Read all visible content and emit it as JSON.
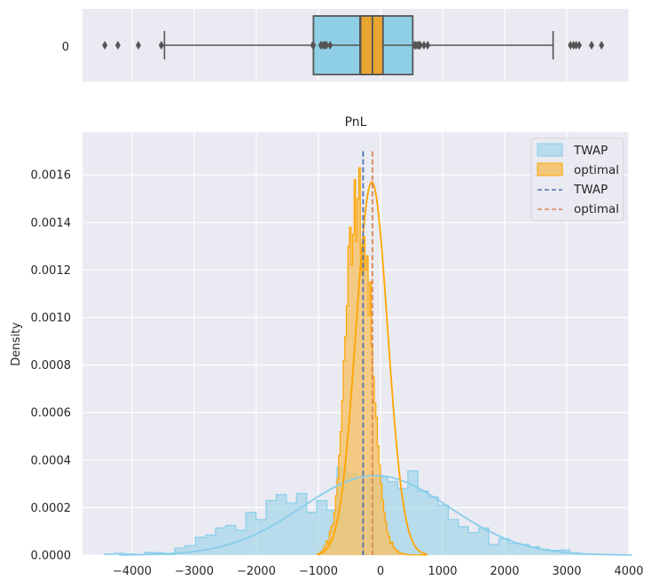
{
  "chart_data": [
    {
      "type": "boxplot",
      "orientation": "horizontal",
      "y_category": "0",
      "xlim": [
        -4800,
        4000
      ],
      "boxes": [
        {
          "name": "TWAP",
          "color": "#8ECFE6",
          "q1": -1080,
          "median": -330,
          "q3": 520,
          "whisker_low": -3480,
          "whisker_high": 2780,
          "outliers": [
            -4440,
            -4230,
            -3900,
            -3530,
            -1080,
            -960,
            -900,
            -870,
            -810,
            3060,
            3110,
            3150,
            3200,
            3400,
            3560
          ]
        },
        {
          "name": "optimal",
          "color": "#E8A530",
          "q1": -320,
          "median": -130,
          "q3": 40,
          "whisker_low": -810,
          "whisker_high": 530,
          "outliers": [
            -1090,
            -960,
            -920,
            550,
            570,
            600,
            620,
            640,
            700,
            760
          ]
        }
      ]
    },
    {
      "type": "histogram",
      "title": "PnL",
      "xlabel": "",
      "ylabel": "Density",
      "xlim": [
        -4800,
        4000
      ],
      "ylim": [
        0,
        0.00178
      ],
      "x_ticks": [
        "−4000",
        "−3000",
        "−2000",
        "−1000",
        "0",
        "1000",
        "2000",
        "3000",
        "4000"
      ],
      "x_tick_values": [
        -4000,
        -3000,
        -2000,
        -1000,
        0,
        1000,
        2000,
        3000,
        4000
      ],
      "y_ticks": [
        "0.0000",
        "0.0002",
        "0.0004",
        "0.0006",
        "0.0008",
        "0.0010",
        "0.0012",
        "0.0014",
        "0.0016"
      ],
      "y_tick_values": [
        0,
        0.0002,
        0.0004,
        0.0006,
        0.0008,
        0.001,
        0.0012,
        0.0014,
        0.0016
      ],
      "series": [
        {
          "name": "TWAP",
          "kind": "hist",
          "color": "#8ECFE6",
          "edge": "#87CEEB",
          "bin_start": -4450,
          "bin_width": 163,
          "values": [
            5e-06,
            8e-06,
            5e-06,
            3e-06,
            1.2e-05,
            1e-05,
            3e-06,
            3e-05,
            4e-05,
            7.5e-05,
            8.5e-05,
            0.000115,
            0.000125,
            0.000105,
            0.00018,
            0.00015,
            0.00023,
            0.000255,
            0.00022,
            0.00026,
            0.00018,
            0.00023,
            0.00019,
            0.00037,
            0.000345,
            0.000305,
            0.00032,
            0.00033,
            0.00031,
            0.00028,
            0.000355,
            0.00027,
            0.000245,
            0.00021,
            0.00015,
            0.00012,
            9.5e-05,
            0.000115,
            4.5e-05,
            7e-05,
            5e-05,
            4.5e-05,
            3.5e-05,
            2.5e-05,
            2e-05,
            2.2e-05,
            1e-05,
            5e-06,
            4e-06,
            3e-06
          ]
        },
        {
          "name": "optimal",
          "kind": "hist",
          "color": "#F6C064",
          "edge": "#FFA500",
          "bin_start": -1000,
          "bin_width": 25,
          "values": [
            5e-06,
            1.5e-05,
            1e-05,
            3e-05,
            4e-05,
            6e-05,
            5e-05,
            0.0001,
            0.00012,
            0.00013,
            0.00018,
            0.00025,
            0.00032,
            0.00042,
            0.00052,
            0.00065,
            0.00082,
            0.00092,
            0.00105,
            0.0013,
            0.00138,
            0.00122,
            0.00135,
            0.00158,
            0.00132,
            0.0015,
            0.00163,
            0.00127,
            0.00118,
            0.00134,
            0.0012,
            0.00126,
            0.00101,
            0.00115,
            0.00088,
            0.00075,
            0.00064,
            0.00058,
            0.00046,
            0.00038,
            0.0003,
            0.00023,
            0.00018,
            0.00014,
            0.0001,
            8e-05,
            5e-05,
            5.5e-05,
            3.5e-05,
            2.5e-05,
            2e-05,
            1.5e-05,
            1e-05,
            8e-06,
            8e-06,
            5e-06,
            3e-06,
            2e-06,
            2e-06,
            1e-06,
            1e-06,
            1e-06,
            1e-06,
            1e-06,
            1e-06,
            1e-06,
            1e-06,
            1e-06,
            1e-06,
            1e-06
          ]
        },
        {
          "name": "TWAP",
          "kind": "kde",
          "color": "#87CEEB",
          "mean": -80,
          "std": 1180,
          "peak": 0.000335
        },
        {
          "name": "optimal",
          "kind": "kde",
          "color": "#FFA500",
          "mean": -140,
          "std": 255,
          "peak": 0.00157
        },
        {
          "name": "TWAP",
          "kind": "vline",
          "color": "#4C72B0",
          "x": -280,
          "ymax": 0.0017
        },
        {
          "name": "optimal",
          "kind": "vline",
          "color": "#DD8452",
          "x": -130,
          "ymax": 0.0017
        }
      ],
      "legend": {
        "position": "top-right",
        "entries": [
          "TWAP",
          "optimal",
          "TWAP",
          "optimal"
        ]
      }
    }
  ]
}
